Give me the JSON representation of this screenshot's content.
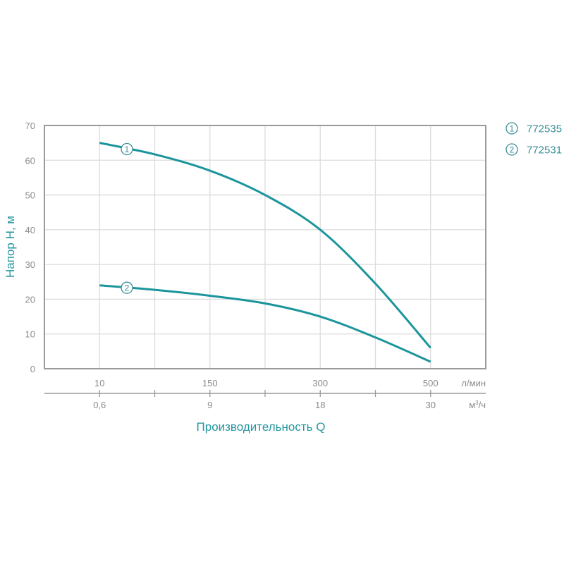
{
  "chart_data": {
    "type": "line",
    "ylabel": "Напор H, м",
    "xlabel": "Производительность Q",
    "ylim": [
      0,
      70
    ],
    "yticks": [
      "0",
      "10",
      "20",
      "30",
      "40",
      "50",
      "60",
      "70"
    ],
    "x_axis_primary": {
      "unit": "л/мин",
      "ticks": [
        "10",
        "150",
        "300",
        "500"
      ],
      "values": [
        10,
        150,
        300,
        500
      ]
    },
    "x_axis_secondary": {
      "unit": "м³/ч",
      "unit_base": "м",
      "unit_sup": "3",
      "unit_tail": "/ч",
      "ticks": [
        "0,6",
        "9",
        "18",
        "30"
      ]
    },
    "grid": true,
    "legend_position": "top-right",
    "series": [
      {
        "name": "772535",
        "marker": "1",
        "x": [
          10,
          80,
          150,
          225,
          300,
          400,
          500
        ],
        "y": [
          65,
          61.7,
          57,
          50,
          40,
          24.5,
          6
        ]
      },
      {
        "name": "772531",
        "marker": "2",
        "x": [
          10,
          80,
          150,
          225,
          300,
          400,
          500
        ],
        "y": [
          24,
          22.7,
          21,
          18.8,
          15,
          9,
          2
        ]
      }
    ],
    "colors": {
      "line": "#1b959c",
      "text": "#8a8a8a",
      "title": "#2596a0",
      "frame": "#9a9a9a",
      "grid": "#dcdcdc"
    }
  }
}
